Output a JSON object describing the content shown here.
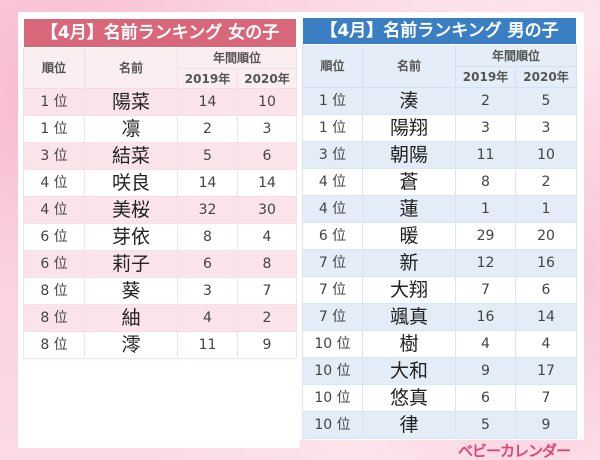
{
  "girls": {
    "title": "【4月】名前ランキング 女の子",
    "col_rank": "順位",
    "col_name": "名前",
    "col_annual": "年間順位",
    "col_2019": "2019年",
    "col_2020": "2020年",
    "rows": [
      [
        "1 位",
        "陽菜",
        "14",
        "10"
      ],
      [
        "1 位",
        "凛",
        "2",
        "3"
      ],
      [
        "3 位",
        "結菜",
        "5",
        "6"
      ],
      [
        "4 位",
        "咲良",
        "14",
        "14"
      ],
      [
        "4 位",
        "美桜",
        "32",
        "30"
      ],
      [
        "6 位",
        "芽依",
        "8",
        "4"
      ],
      [
        "6 位",
        "莉子",
        "6",
        "8"
      ],
      [
        "8 位",
        "葵",
        "3",
        "7"
      ],
      [
        "8 位",
        "紬",
        "4",
        "2"
      ],
      [
        "8 位",
        "澪",
        "11",
        "9"
      ]
    ]
  },
  "boys": {
    "title": "【4月】名前ランキング 男の子",
    "col_rank": "順位",
    "col_name": "名前",
    "col_annual": "年間順位",
    "col_2019": "2019年",
    "col_2020": "2020年",
    "rows": [
      [
        "1 位",
        "湊",
        "2",
        "5"
      ],
      [
        "1 位",
        "陽翔",
        "3",
        "3"
      ],
      [
        "3 位",
        "朝陽",
        "11",
        "10"
      ],
      [
        "4 位",
        "蒼",
        "8",
        "2"
      ],
      [
        "4 位",
        "蓮",
        "1",
        "1"
      ],
      [
        "6 位",
        "暖",
        "29",
        "20"
      ],
      [
        "7 位",
        "新",
        "12",
        "16"
      ],
      [
        "7 位",
        "大翔",
        "7",
        "6"
      ],
      [
        "7 位",
        "颯真",
        "16",
        "14"
      ],
      [
        "10 位",
        "樹",
        "4",
        "4"
      ],
      [
        "10 位",
        "大和",
        "9",
        "17"
      ],
      [
        "10 位",
        "悠真",
        "6",
        "7"
      ],
      [
        "10 位",
        "律",
        "5",
        "9"
      ]
    ]
  },
  "logo": "ベビーカレンダー",
  "colors": {
    "girls_accent": "#d9677a",
    "boys_accent": "#3a7ec4",
    "logo": "#e0457a"
  }
}
